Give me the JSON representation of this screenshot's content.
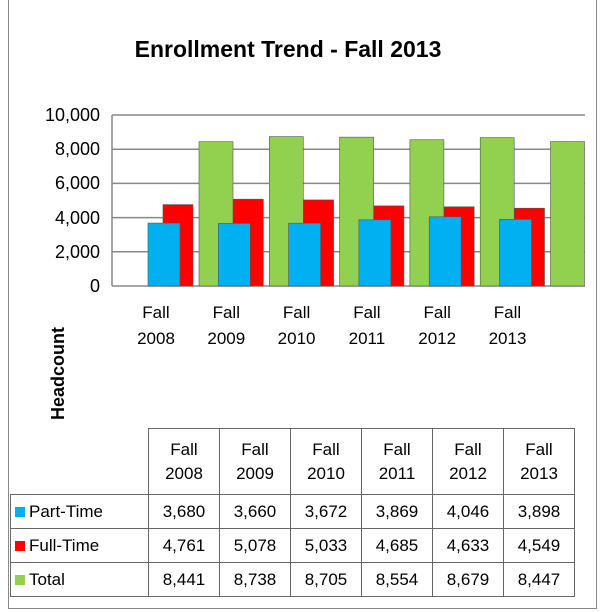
{
  "chart_data": {
    "type": "bar",
    "title": "Enrollment Trend - Fall 2013",
    "y_label": "Headcount",
    "categories": [
      "Fall 2008",
      "Fall 2009",
      "Fall 2010",
      "Fall 2011",
      "Fall 2012",
      "Fall 2013"
    ],
    "series": [
      {
        "name": "Part-Time",
        "color": "#00b0f0",
        "values": [
          3680,
          3660,
          3672,
          3869,
          4046,
          3898
        ],
        "value_labels": [
          "3,680",
          "3,660",
          "3,672",
          "3,869",
          "4,046",
          "3,898"
        ]
      },
      {
        "name": "Full-Time",
        "color": "#ff0000",
        "values": [
          4761,
          5078,
          5033,
          4685,
          4633,
          4549
        ],
        "value_labels": [
          "4,761",
          "5,078",
          "5,033",
          "4,685",
          "4,633",
          "4,549"
        ]
      },
      {
        "name": "Total",
        "color": "#92d050",
        "values": [
          8441,
          8738,
          8705,
          8554,
          8679,
          8447
        ],
        "value_labels": [
          "8,441",
          "8,738",
          "8,705",
          "8,554",
          "8,679",
          "8,447"
        ]
      }
    ],
    "ylim": [
      0,
      10000
    ],
    "yticks": [
      0,
      {
        "value": 2000,
        "label": "2,000"
      },
      {
        "value": 4000,
        "label": "4,000"
      },
      {
        "value": 6000,
        "label": "6,000"
      },
      {
        "value": 8000,
        "label": "8,000"
      },
      {
        "value": 10000,
        "label": "10,000"
      }
    ],
    "grid": true
  }
}
